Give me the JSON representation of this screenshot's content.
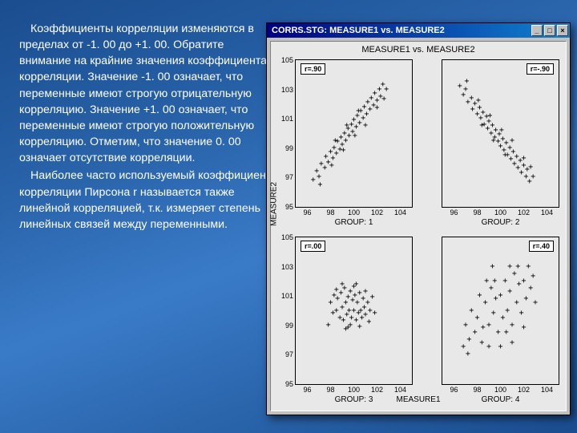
{
  "text": {
    "para1": "Коэффициенты корреляции изменяются в пределах от -1. 00 до +1. 00. Обратите внимание на крайние значения коэффициента корреляции. Значение -1. 00 означает, что переменные имеют строгую отрицательную корреляцию. Значение +1. 00 означает, что переменные имеют строгую положительную корреляцию. Отметим, что значение 0. 00 означает отсутствие корреляции.",
    "para2": "Наиболее часто используемый коэффициент корреляции Пирсона r называется также линейной корреляцией, т.к. измеряет степень линейных связей между переменными."
  },
  "window": {
    "title": "CORRS.STG: MEASURE1 vs. MEASURE2",
    "btn_min": "_",
    "btn_max": "□",
    "btn_close": "×",
    "subtitle": "MEASURE1 vs. MEASURE2",
    "ylabel": "MEASURE2",
    "xlabel": "MEASURE1",
    "yticks": [
      105,
      103,
      101,
      99,
      97,
      95
    ],
    "xticks": [
      96,
      98,
      100,
      102,
      104
    ],
    "y_range": [
      95,
      105
    ],
    "x_range": [
      95,
      105
    ],
    "panels": [
      {
        "id": "p1",
        "row": 0,
        "col": 0,
        "corr_label": "r=.90",
        "box_side": "left",
        "group_label": "GROUP: 1",
        "points": [
          [
            96.5,
            96.8
          ],
          [
            96.8,
            97.4
          ],
          [
            97.0,
            97.0
          ],
          [
            97.2,
            97.9
          ],
          [
            97.5,
            97.6
          ],
          [
            97.6,
            98.4
          ],
          [
            97.8,
            98.0
          ],
          [
            98.0,
            98.7
          ],
          [
            98.2,
            98.3
          ],
          [
            98.3,
            99.0
          ],
          [
            98.5,
            98.6
          ],
          [
            98.6,
            99.4
          ],
          [
            98.8,
            98.9
          ],
          [
            98.9,
            99.7
          ],
          [
            99.0,
            99.2
          ],
          [
            99.2,
            100.0
          ],
          [
            99.3,
            99.5
          ],
          [
            99.5,
            100.3
          ],
          [
            99.6,
            99.8
          ],
          [
            99.8,
            100.6
          ],
          [
            99.9,
            100.1
          ],
          [
            100.0,
            100.9
          ],
          [
            100.2,
            100.4
          ],
          [
            100.3,
            101.2
          ],
          [
            100.5,
            100.7
          ],
          [
            100.6,
            101.5
          ],
          [
            100.8,
            101.0
          ],
          [
            100.9,
            101.8
          ],
          [
            101.1,
            101.3
          ],
          [
            101.2,
            102.1
          ],
          [
            101.4,
            101.6
          ],
          [
            101.5,
            102.4
          ],
          [
            101.7,
            101.9
          ],
          [
            101.8,
            102.7
          ],
          [
            102.0,
            102.2
          ],
          [
            102.2,
            103.0
          ],
          [
            102.3,
            102.5
          ],
          [
            102.5,
            103.3
          ],
          [
            102.8,
            103.0
          ],
          [
            97.1,
            96.5
          ],
          [
            98.1,
            97.8
          ],
          [
            99.1,
            98.8
          ],
          [
            100.1,
            99.8
          ],
          [
            101.0,
            100.5
          ],
          [
            102.0,
            101.7
          ],
          [
            102.6,
            102.3
          ],
          [
            98.4,
            99.5
          ],
          [
            99.4,
            100.5
          ],
          [
            100.4,
            101.5
          ]
        ]
      },
      {
        "id": "p2",
        "row": 0,
        "col": 1,
        "corr_label": "r=-.90",
        "box_side": "right",
        "group_label": "GROUP: 2",
        "points": [
          [
            96.5,
            103.2
          ],
          [
            96.8,
            102.6
          ],
          [
            97.0,
            103.0
          ],
          [
            97.2,
            102.1
          ],
          [
            97.5,
            102.4
          ],
          [
            97.6,
            101.6
          ],
          [
            97.8,
            102.0
          ],
          [
            98.0,
            101.3
          ],
          [
            98.2,
            101.7
          ],
          [
            98.3,
            101.0
          ],
          [
            98.5,
            101.4
          ],
          [
            98.6,
            100.6
          ],
          [
            98.8,
            101.1
          ],
          [
            98.9,
            100.3
          ],
          [
            99.0,
            100.8
          ],
          [
            99.2,
            100.0
          ],
          [
            99.3,
            100.5
          ],
          [
            99.5,
            99.7
          ],
          [
            99.6,
            100.2
          ],
          [
            99.8,
            99.4
          ],
          [
            99.9,
            99.9
          ],
          [
            100.0,
            99.1
          ],
          [
            100.2,
            99.6
          ],
          [
            100.3,
            98.8
          ],
          [
            100.5,
            99.3
          ],
          [
            100.6,
            98.5
          ],
          [
            100.8,
            99.0
          ],
          [
            100.9,
            98.2
          ],
          [
            101.1,
            98.7
          ],
          [
            101.2,
            97.9
          ],
          [
            101.4,
            98.4
          ],
          [
            101.5,
            97.6
          ],
          [
            101.7,
            98.1
          ],
          [
            101.8,
            97.3
          ],
          [
            102.0,
            97.8
          ],
          [
            102.2,
            97.0
          ],
          [
            102.3,
            97.5
          ],
          [
            102.5,
            96.7
          ],
          [
            102.8,
            97.0
          ],
          [
            97.1,
            103.5
          ],
          [
            98.1,
            102.2
          ],
          [
            99.1,
            101.2
          ],
          [
            100.1,
            100.2
          ],
          [
            101.0,
            99.5
          ],
          [
            102.0,
            98.3
          ],
          [
            102.6,
            97.7
          ],
          [
            98.4,
            100.5
          ],
          [
            99.4,
            99.5
          ],
          [
            100.4,
            98.5
          ]
        ]
      },
      {
        "id": "p3",
        "row": 1,
        "col": 0,
        "corr_label": "r=.00",
        "box_side": "left",
        "group_label": "GROUP: 3",
        "points": [
          [
            97.8,
            99.0
          ],
          [
            98.0,
            100.5
          ],
          [
            98.2,
            99.8
          ],
          [
            98.3,
            101.0
          ],
          [
            98.5,
            100.0
          ],
          [
            98.6,
            100.8
          ],
          [
            98.8,
            99.5
          ],
          [
            98.9,
            101.2
          ],
          [
            99.0,
            100.2
          ],
          [
            99.1,
            99.3
          ],
          [
            99.2,
            101.5
          ],
          [
            99.3,
            100.5
          ],
          [
            99.4,
            99.7
          ],
          [
            99.5,
            100.9
          ],
          [
            99.6,
            100.0
          ],
          [
            99.7,
            101.3
          ],
          [
            99.8,
            99.5
          ],
          [
            99.9,
            100.7
          ],
          [
            100.0,
            100.0
          ],
          [
            100.1,
            101.0
          ],
          [
            100.2,
            99.3
          ],
          [
            100.3,
            100.5
          ],
          [
            100.4,
            99.8
          ],
          [
            100.5,
            101.2
          ],
          [
            100.6,
            100.0
          ],
          [
            100.7,
            99.5
          ],
          [
            100.8,
            100.8
          ],
          [
            100.9,
            100.2
          ],
          [
            101.0,
            99.7
          ],
          [
            101.2,
            100.5
          ],
          [
            101.4,
            100.0
          ],
          [
            101.6,
            100.9
          ],
          [
            101.8,
            99.8
          ],
          [
            99.0,
            101.8
          ],
          [
            99.5,
            98.8
          ],
          [
            100.0,
            101.6
          ],
          [
            100.5,
            98.9
          ],
          [
            98.5,
            101.4
          ],
          [
            101.0,
            101.3
          ],
          [
            101.3,
            99.2
          ],
          [
            99.7,
            99.0
          ],
          [
            100.2,
            101.8
          ],
          [
            99.3,
            98.7
          ]
        ]
      },
      {
        "id": "p4",
        "row": 1,
        "col": 1,
        "corr_label": "r=.40",
        "box_side": "right",
        "group_label": "GROUP: 4",
        "points": [
          [
            96.8,
            97.5
          ],
          [
            97.0,
            99.0
          ],
          [
            97.3,
            98.0
          ],
          [
            97.5,
            100.0
          ],
          [
            97.8,
            98.5
          ],
          [
            98.0,
            99.5
          ],
          [
            98.2,
            101.0
          ],
          [
            98.5,
            98.8
          ],
          [
            98.7,
            100.5
          ],
          [
            99.0,
            99.0
          ],
          [
            99.2,
            101.5
          ],
          [
            99.4,
            99.8
          ],
          [
            99.6,
            100.8
          ],
          [
            99.8,
            98.5
          ],
          [
            100.0,
            101.0
          ],
          [
            100.2,
            99.5
          ],
          [
            100.4,
            102.0
          ],
          [
            100.6,
            100.0
          ],
          [
            100.8,
            101.3
          ],
          [
            101.0,
            99.0
          ],
          [
            101.2,
            102.5
          ],
          [
            101.4,
            100.5
          ],
          [
            101.6,
            101.8
          ],
          [
            101.8,
            99.8
          ],
          [
            102.0,
            102.0
          ],
          [
            102.2,
            100.8
          ],
          [
            102.4,
            103.0
          ],
          [
            102.6,
            101.5
          ],
          [
            102.8,
            102.3
          ],
          [
            103.0,
            100.5
          ],
          [
            97.2,
            97.0
          ],
          [
            98.4,
            97.8
          ],
          [
            99.5,
            102.0
          ],
          [
            100.5,
            98.5
          ],
          [
            101.5,
            103.0
          ],
          [
            99.0,
            97.5
          ],
          [
            100.8,
            103.0
          ],
          [
            98.8,
            102.0
          ],
          [
            101.0,
            97.8
          ],
          [
            102.0,
            98.8
          ],
          [
            99.3,
            103.0
          ],
          [
            100.0,
            97.5
          ]
        ]
      }
    ]
  }
}
